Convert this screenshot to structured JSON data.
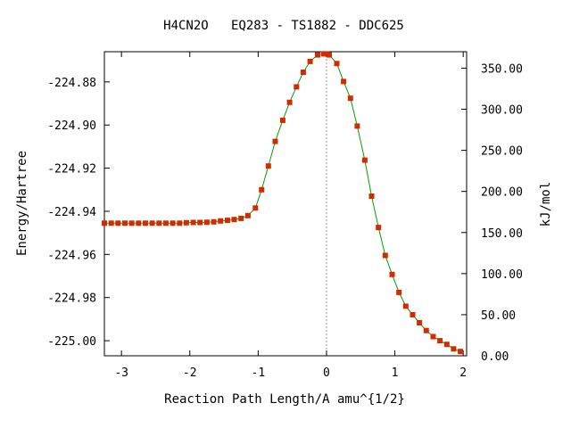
{
  "chart_data": {
    "type": "line",
    "title": "H4CN2O   EQ283 - TS1882 - DDC625",
    "xlabel": "Reaction Path Length/A amu^{1/2}",
    "ylabel": "Energy/Hartree",
    "y2label": "kJ/mol",
    "xlim": [
      -3.25,
      2.05
    ],
    "ylim": [
      -225.007,
      -224.866
    ],
    "y2lim": [
      0,
      370
    ],
    "x_ticks": [
      -3,
      -2,
      -1,
      0,
      1,
      2
    ],
    "x_tick_labels": [
      "-3",
      "-2",
      "-1",
      "0",
      "1",
      "2"
    ],
    "y_ticks": [
      -224.88,
      -224.9,
      -224.92,
      -224.94,
      -224.96,
      -224.98,
      -225.0
    ],
    "y_tick_labels": [
      "-224.88",
      "-224.90",
      "-224.92",
      "-224.94",
      "-224.96",
      "-224.98",
      "-225.00"
    ],
    "y2_ticks": [
      0,
      50,
      100,
      150,
      200,
      250,
      300,
      350
    ],
    "y2_tick_labels": [
      "0.00",
      "50.00",
      "100.00",
      "150.00",
      "200.00",
      "250.00",
      "300.00",
      "350.00"
    ],
    "ts_marker_x": 0,
    "series": [
      {
        "line_color": "#00a000",
        "marker_color": "#d42a00",
        "x": [
          -3.25,
          -3.15,
          -3.05,
          -2.95,
          -2.85,
          -2.75,
          -2.65,
          -2.55,
          -2.45,
          -2.35,
          -2.25,
          -2.15,
          -2.05,
          -1.95,
          -1.85,
          -1.75,
          -1.65,
          -1.55,
          -1.45,
          -1.35,
          -1.25,
          -1.15,
          -1.04,
          -0.95,
          -0.85,
          -0.75,
          -0.64,
          -0.54,
          -0.44,
          -0.34,
          -0.24,
          -0.13,
          -0.04,
          0.0,
          0.04,
          0.15,
          0.25,
          0.35,
          0.45,
          0.56,
          0.66,
          0.76,
          0.86,
          0.96,
          1.06,
          1.16,
          1.26,
          1.36,
          1.46,
          1.56,
          1.66,
          1.76,
          1.86,
          1.96
        ],
        "y": [
          -224.9455,
          -224.9455,
          -224.9455,
          -224.9455,
          -224.9455,
          -224.9455,
          -224.9455,
          -224.9455,
          -224.9455,
          -224.9455,
          -224.9455,
          -224.9455,
          -224.9453,
          -224.9452,
          -224.9452,
          -224.9451,
          -224.9449,
          -224.9445,
          -224.9442,
          -224.9438,
          -224.9433,
          -224.942,
          -224.9385,
          -224.93,
          -224.919,
          -224.9076,
          -224.8978,
          -224.8895,
          -224.8823,
          -224.8755,
          -224.8705,
          -224.8675,
          -224.867,
          -224.867,
          -224.8675,
          -224.8715,
          -224.8798,
          -224.8876,
          -224.9005,
          -224.9163,
          -224.933,
          -224.9475,
          -224.9605,
          -224.9693,
          -224.9776,
          -224.984,
          -224.988,
          -224.9917,
          -224.9953,
          -224.9981,
          -225.0,
          -225.0017,
          -225.0038,
          -225.005
        ]
      }
    ]
  }
}
